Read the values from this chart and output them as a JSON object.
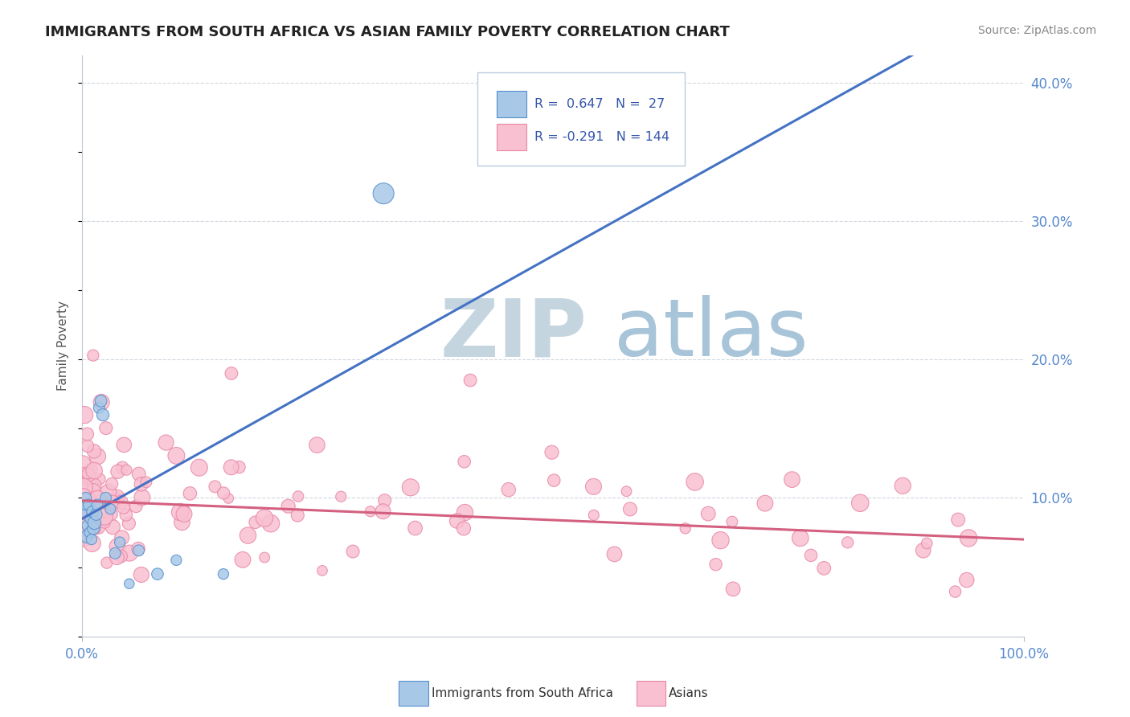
{
  "title": "IMMIGRANTS FROM SOUTH AFRICA VS ASIAN FAMILY POVERTY CORRELATION CHART",
  "source": "Source: ZipAtlas.com",
  "ylabel": "Family Poverty",
  "color_blue": "#A8C8E8",
  "color_blue_edge": "#5590CC",
  "color_blue_line": "#4472C4",
  "color_pink": "#F8C0D0",
  "color_pink_edge": "#E888A8",
  "color_pink_line": "#D46080",
  "color_watermark_zip": "#C0CDD8",
  "color_watermark_atlas": "#A8C4D8",
  "background": "#FFFFFF",
  "xlim": [
    0,
    1.0
  ],
  "ylim": [
    0,
    0.42
  ],
  "blue_line_x": [
    0.0,
    1.0
  ],
  "blue_line_y_start": 0.085,
  "blue_line_slope": 0.38,
  "pink_line_x": [
    0.0,
    1.0
  ],
  "pink_line_y_start": 0.098,
  "pink_line_slope": -0.028
}
